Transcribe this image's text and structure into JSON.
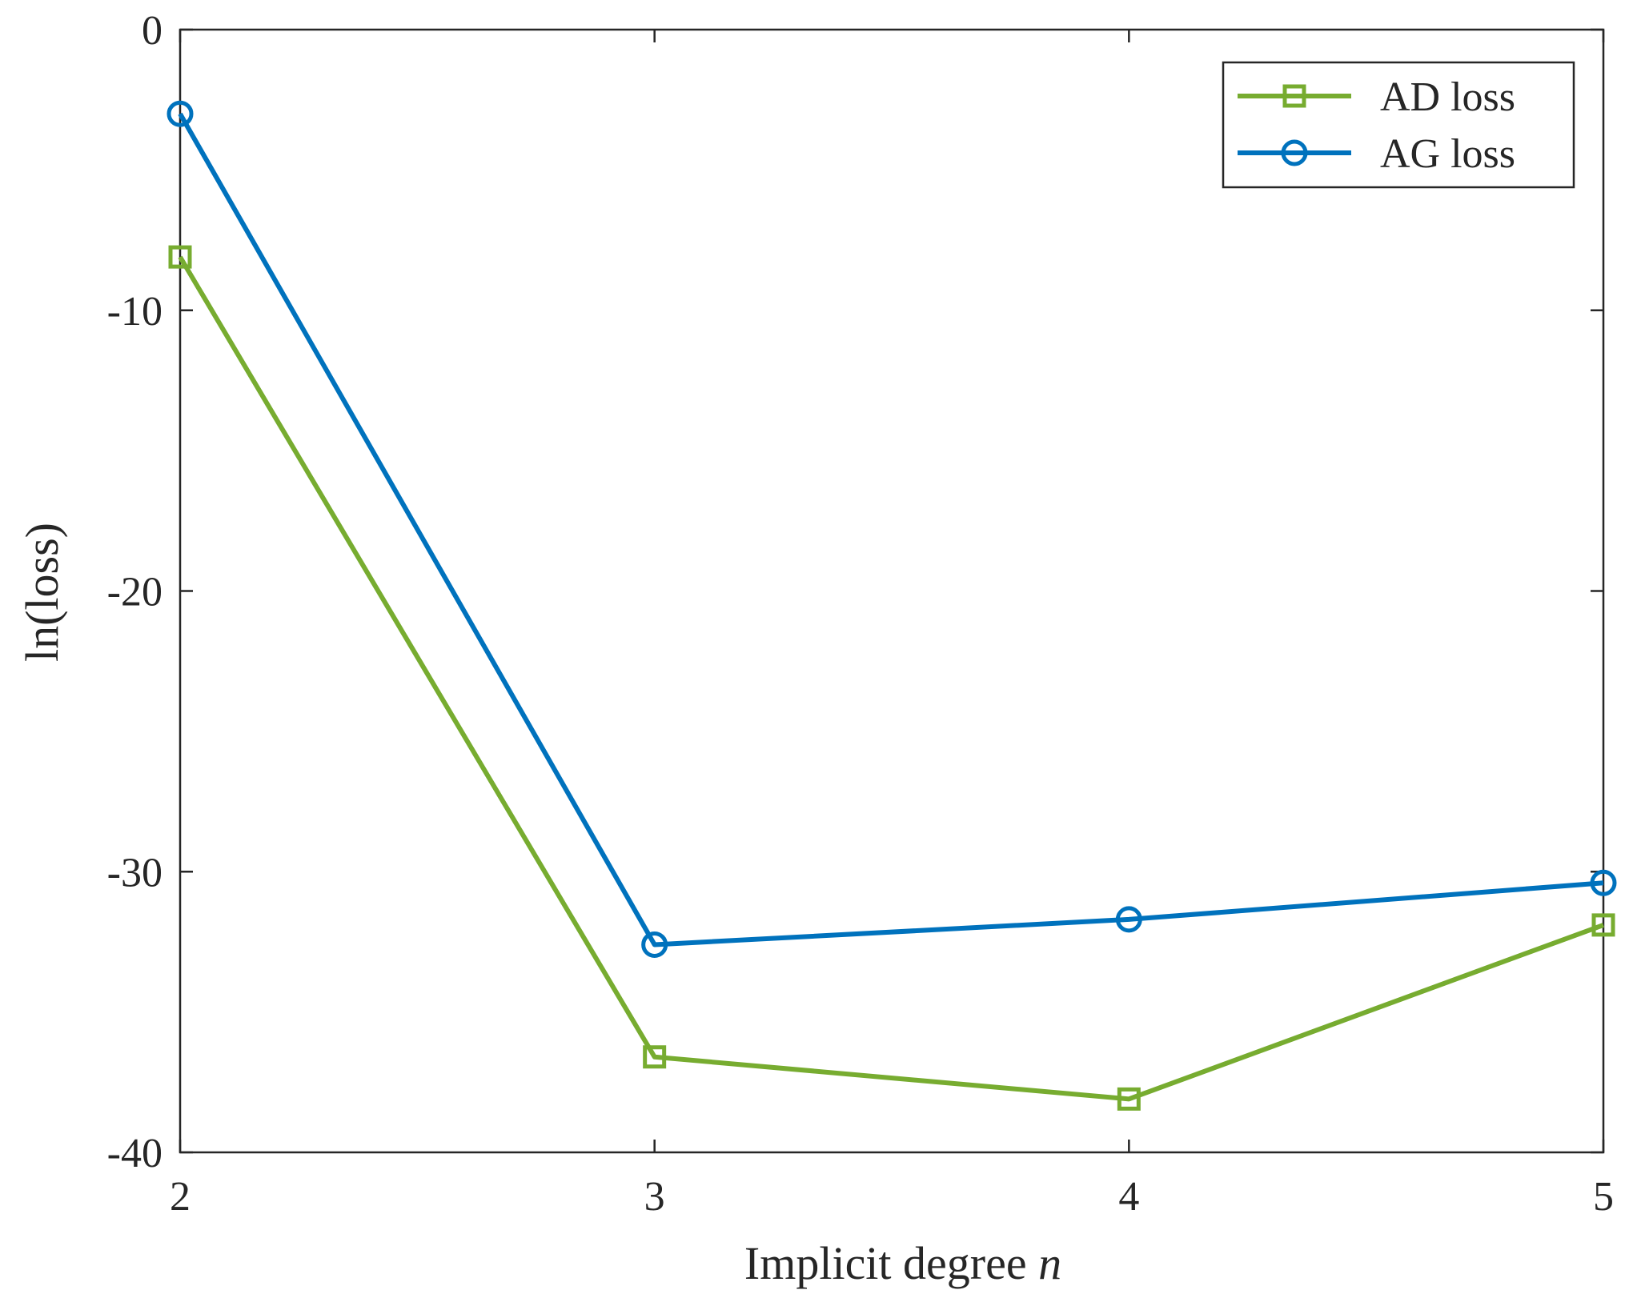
{
  "chart_data": {
    "type": "line",
    "xlabel": "Implicit degree",
    "xlabel_var": "n",
    "ylabel": "ln(loss)",
    "x": [
      2,
      3,
      4,
      5
    ],
    "xlim": [
      2,
      5
    ],
    "ylim": [
      -40,
      0
    ],
    "xticks": [
      2,
      3,
      4,
      5
    ],
    "yticks": [
      0,
      -10,
      -20,
      -30,
      -40
    ],
    "xtick_labels": [
      "2",
      "3",
      "4",
      "5"
    ],
    "ytick_labels": [
      "0",
      "-10",
      "-20",
      "-30",
      "-40"
    ],
    "grid": false,
    "legend_position": "top-right",
    "series": [
      {
        "name": "AD loss",
        "marker": "square",
        "color": "#77AC30",
        "values": [
          -8.1,
          -36.6,
          -38.1,
          -31.9
        ]
      },
      {
        "name": "AG loss",
        "marker": "circle",
        "color": "#0072BD",
        "values": [
          -3.0,
          -32.6,
          -31.7,
          -30.4
        ]
      }
    ]
  }
}
